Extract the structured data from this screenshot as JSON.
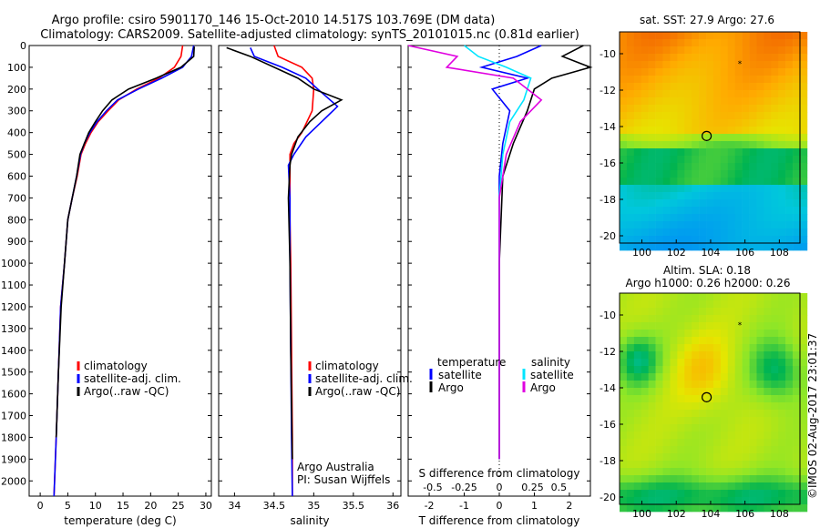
{
  "header": {
    "line1": "Argo profile: csiro 5901170_146 15-Oct-2010 14.517S 103.769E (DM data)",
    "line2": "Climatology: CARS2009. Satellite-adjusted climatology: synTS_20101015.nc (0.81d earlier)"
  },
  "colors": {
    "red": "#ff0000",
    "blue": "#0000ff",
    "black": "#000000",
    "cyan": "#00e5ff",
    "magenta": "#e000e0"
  },
  "chart_data": [
    {
      "id": "temperature",
      "type": "line",
      "xlabel": "temperature (deg C)",
      "xlim": [
        -2,
        31
      ],
      "ylim": [
        2070,
        0
      ],
      "yticks": [
        0,
        100,
        200,
        300,
        400,
        500,
        600,
        700,
        800,
        900,
        1000,
        1100,
        1200,
        1300,
        1400,
        1500,
        1600,
        1700,
        1800,
        1900,
        2000
      ],
      "xticks": [
        0,
        5,
        10,
        15,
        20,
        25,
        30
      ],
      "legend": [
        "climatology",
        "satellite-adj. clim.",
        "Argo(..raw -QC)"
      ],
      "series": [
        {
          "name": "climatology",
          "color": "red",
          "x": [
            25.8,
            25.5,
            24.3,
            21.5,
            17.5,
            14.2,
            12.3,
            10.5,
            9.2,
            8.2,
            7.4,
            6.7,
            5.8,
            5.0,
            4.4,
            3.7,
            3.3,
            2.9,
            2.5
          ],
          "y": [
            0,
            50,
            100,
            150,
            200,
            250,
            300,
            350,
            400,
            450,
            500,
            600,
            700,
            800,
            1000,
            1200,
            1500,
            1800,
            2070
          ]
        },
        {
          "name": "satellite-adj. clim.",
          "color": "blue",
          "x": [
            27.8,
            27.4,
            25.8,
            22.0,
            17.8,
            14.0,
            12.0,
            10.3,
            9.0,
            8.0,
            7.3,
            6.6,
            5.8,
            5.0,
            4.4,
            3.7,
            3.3,
            2.9,
            2.5
          ],
          "y": [
            0,
            50,
            100,
            150,
            200,
            250,
            300,
            350,
            400,
            450,
            500,
            600,
            700,
            800,
            1000,
            1200,
            1500,
            1800,
            2070
          ]
        },
        {
          "name": "Argo(..raw -QC)",
          "color": "black",
          "x": [
            27.9,
            27.8,
            25.5,
            21.0,
            16.0,
            13.0,
            11.3,
            10.0,
            8.8,
            8.0,
            7.2,
            6.6,
            5.8,
            5.0,
            4.4,
            3.8,
            3.3,
            2.9
          ],
          "y": [
            5,
            50,
            100,
            150,
            200,
            250,
            300,
            350,
            400,
            450,
            500,
            600,
            700,
            800,
            1000,
            1200,
            1500,
            1800
          ]
        }
      ],
      "labels": []
    },
    {
      "id": "salinity",
      "type": "line",
      "xlabel": "salinity",
      "xlim": [
        33.8,
        36.1
      ],
      "ylim": [
        2070,
        0
      ],
      "xticks": [
        34,
        34.5,
        35,
        35.5,
        36
      ],
      "legend": [
        "climatology",
        "satellite-adj. clim.",
        "Argo(..raw -QC)"
      ],
      "series": [
        {
          "name": "climatology",
          "color": "red",
          "x": [
            34.5,
            34.55,
            34.85,
            34.98,
            35.0,
            34.98,
            34.85,
            34.75,
            34.7,
            34.7,
            34.7,
            34.71,
            34.72,
            34.73,
            34.73
          ],
          "y": [
            0,
            50,
            100,
            150,
            200,
            300,
            400,
            450,
            500,
            600,
            800,
            1000,
            1400,
            1800,
            2070
          ]
        },
        {
          "name": "satellite-adj. clim.",
          "color": "blue",
          "x": [
            34.2,
            34.25,
            34.6,
            34.9,
            35.05,
            35.3,
            35.1,
            34.9,
            34.75,
            34.68,
            34.7,
            34.7,
            34.71,
            34.72,
            34.73
          ],
          "y": [
            10,
            50,
            100,
            150,
            200,
            280,
            350,
            420,
            500,
            550,
            700,
            1000,
            1400,
            1800,
            2070
          ]
        },
        {
          "name": "Argo(..raw -QC)",
          "color": "black",
          "x": [
            33.9,
            34.2,
            34.5,
            34.8,
            35.0,
            35.35,
            35.1,
            34.95,
            34.8,
            34.72,
            34.7,
            34.68,
            34.7,
            34.71,
            34.73
          ],
          "y": [
            10,
            50,
            100,
            150,
            200,
            250,
            300,
            350,
            420,
            500,
            550,
            700,
            1000,
            1400,
            1900
          ]
        }
      ],
      "labels": [
        "Argo Australia",
        "PI: Susan Wijffels"
      ]
    },
    {
      "id": "difference",
      "type": "line",
      "xlabel": "T difference from climatology",
      "xlabel2": "S difference from climatology",
      "xlim": [
        -2.6,
        2.6
      ],
      "ylim": [
        2070,
        0
      ],
      "xticks": [
        -2,
        -1,
        0,
        1,
        2
      ],
      "xticks2": [
        "-0.5",
        "-0.25",
        "0",
        "0.25",
        "0.5"
      ],
      "legend": {
        "temperature": "temperature",
        "salinity": "salinity",
        "satellite": "satellite",
        "argo": "Argo"
      },
      "series": [
        {
          "name": "temperature satellite",
          "color": "blue",
          "x": [
            1.2,
            0.5,
            -0.5,
            0.8,
            -0.2,
            0.3,
            0.1,
            0,
            0,
            0,
            0
          ],
          "y": [
            0,
            50,
            100,
            150,
            200,
            300,
            450,
            600,
            1000,
            1500,
            1900
          ]
        },
        {
          "name": "temperature Argo",
          "color": "black",
          "x": [
            2.4,
            1.8,
            2.6,
            1.5,
            1.0,
            0.8,
            0.4,
            0.1,
            0,
            0,
            0
          ],
          "y": [
            0,
            50,
            100,
            150,
            200,
            300,
            450,
            600,
            1000,
            1500,
            1900
          ]
        },
        {
          "name": "salinity satellite",
          "color": "cyan",
          "x": [
            -1.0,
            -0.6,
            0.2,
            0.9,
            0.7,
            0.3,
            0.1,
            0,
            0,
            0
          ],
          "y": [
            0,
            50,
            100,
            150,
            250,
            350,
            500,
            700,
            1200,
            1900
          ]
        },
        {
          "name": "salinity Argo",
          "color": "magenta",
          "x": [
            -2.6,
            -1.2,
            -1.5,
            0.4,
            1.2,
            0.6,
            0.2,
            0,
            0,
            0
          ],
          "y": [
            0,
            50,
            100,
            150,
            250,
            350,
            500,
            700,
            1200,
            1900
          ]
        }
      ]
    },
    {
      "id": "sst-map",
      "type": "heatmap",
      "title": "sat. SST: 27.9  Argo: 27.6",
      "xlim": [
        98.7,
        109.2
      ],
      "ylim": [
        -20.4,
        -8.8
      ],
      "xticks": [
        100,
        102,
        104,
        106,
        108
      ],
      "yticks": [
        -10,
        -12,
        -14,
        -16,
        -18,
        -20
      ],
      "argo_position": {
        "lon": 103.769,
        "lat": -14.517
      },
      "star_position": {
        "lon": 105.7,
        "lat": -10.5
      }
    },
    {
      "id": "sla-map",
      "type": "heatmap",
      "title": "Altim. SLA: 0.18",
      "subtitle": "Argo h1000: 0.26  h2000: 0.26",
      "xlim": [
        98.7,
        109.2
      ],
      "ylim": [
        -20.4,
        -8.8
      ],
      "xticks": [
        100,
        102,
        104,
        106,
        108
      ],
      "yticks": [
        -10,
        -12,
        -14,
        -16,
        -18,
        -20
      ],
      "argo_position": {
        "lon": 103.769,
        "lat": -14.517
      },
      "star_position": {
        "lon": 105.7,
        "lat": -10.5
      }
    }
  ],
  "side_label": "©IMOS 02-Aug-2017 23:01:37"
}
